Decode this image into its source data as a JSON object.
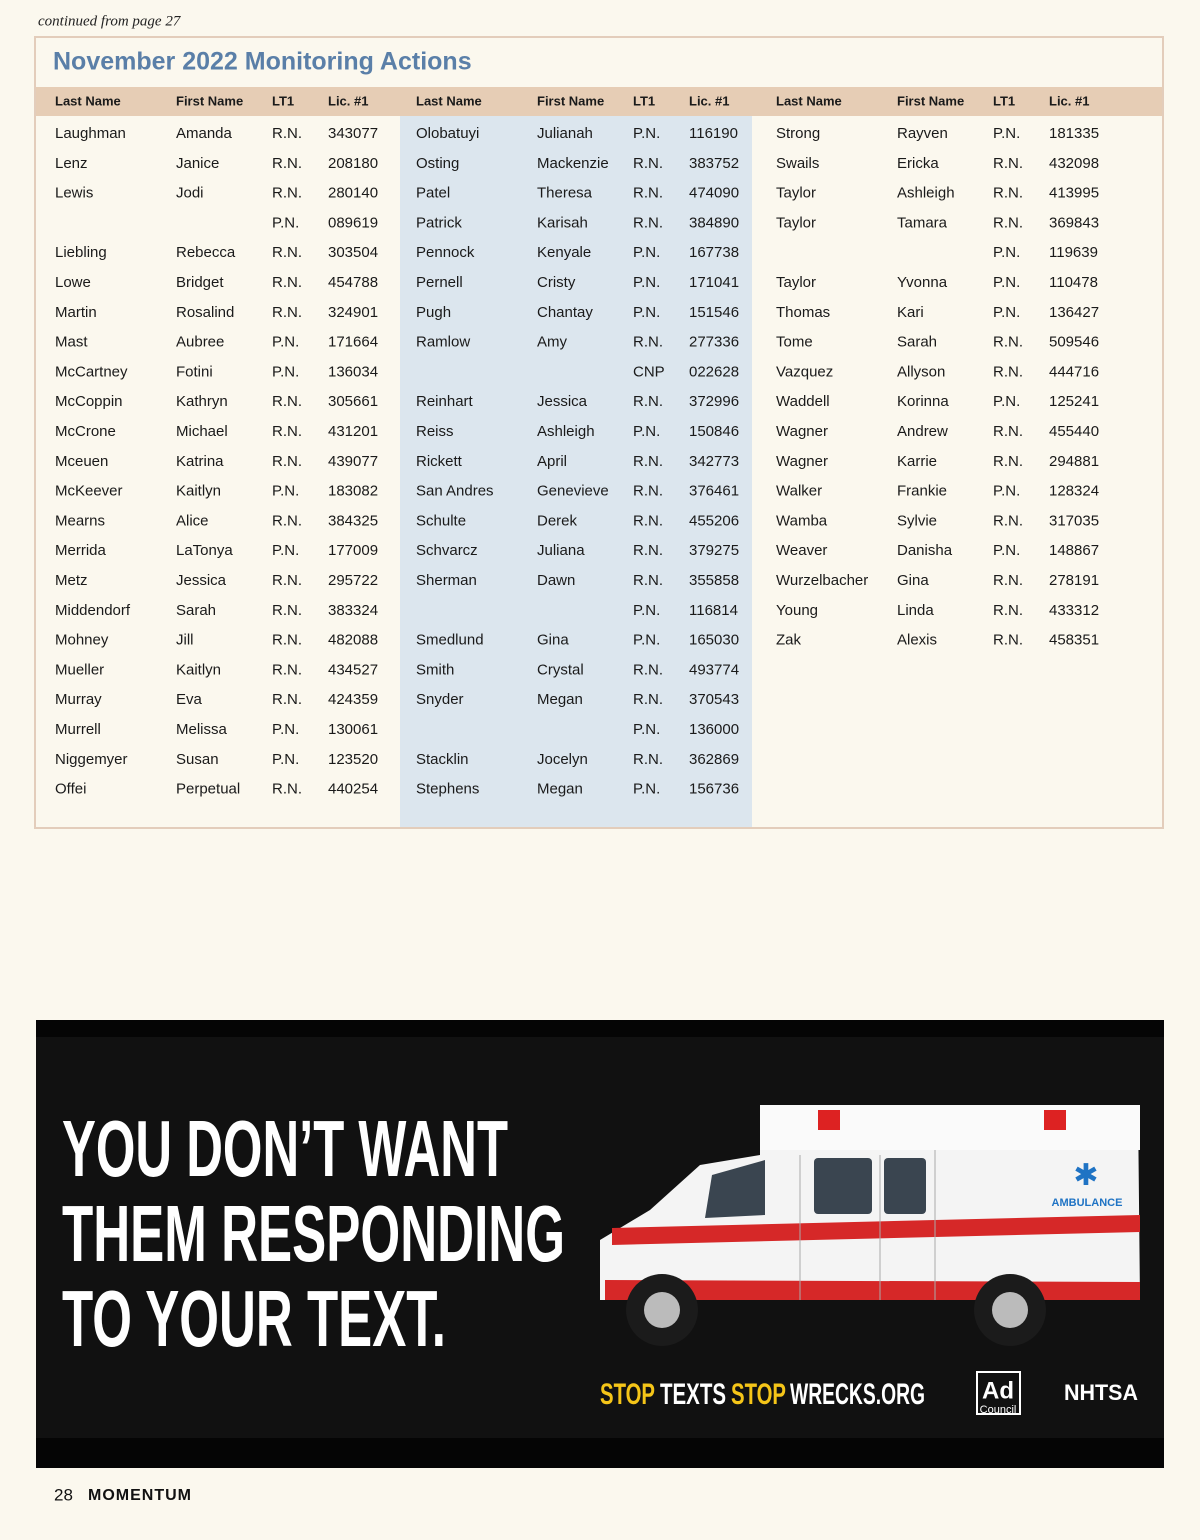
{
  "header": {
    "continued": "continued from page 27"
  },
  "table": {
    "title": "November 2022 Monitoring  Actions",
    "headers": [
      "Last Name",
      "First Name",
      "LT1",
      "Lic. #1"
    ],
    "columns": [
      {
        "rows": [
          [
            "Laughman",
            "Amanda",
            "R.N.",
            "343077"
          ],
          [
            "Lenz",
            "Janice",
            "R.N.",
            "208180"
          ],
          [
            "Lewis",
            "Jodi",
            "R.N.",
            "280140"
          ],
          [
            null,
            null,
            "P.N.",
            "089619"
          ],
          [
            "Liebling",
            "Rebecca",
            "R.N.",
            "303504"
          ],
          [
            "Lowe",
            "Bridget",
            "R.N.",
            "454788"
          ],
          [
            "Martin",
            "Rosalind",
            "R.N.",
            "324901"
          ],
          [
            "Mast",
            "Aubree",
            "P.N.",
            "171664"
          ],
          [
            "McCartney",
            "Fotini",
            "P.N.",
            "136034"
          ],
          [
            "McCoppin",
            "Kathryn",
            "R.N.",
            "305661"
          ],
          [
            "McCrone",
            "Michael",
            "R.N.",
            "431201"
          ],
          [
            "Mceuen",
            "Katrina",
            "R.N.",
            "439077"
          ],
          [
            "McKeever",
            "Kaitlyn",
            "P.N.",
            "183082"
          ],
          [
            "Mearns",
            "Alice",
            "R.N.",
            "384325"
          ],
          [
            "Merrida",
            "LaTonya",
            "P.N.",
            "177009"
          ],
          [
            "Metz",
            "Jessica",
            "R.N.",
            "295722"
          ],
          [
            "Middendorf",
            "Sarah",
            "R.N.",
            "383324"
          ],
          [
            "Mohney",
            "Jill",
            "R.N.",
            "482088"
          ],
          [
            "Mueller",
            "Kaitlyn",
            "R.N.",
            "434527"
          ],
          [
            "Murray",
            "Eva",
            "R.N.",
            "424359"
          ],
          [
            "Murrell",
            "Melissa",
            "P.N.",
            "130061"
          ],
          [
            "Niggemyer",
            "Susan",
            "P.N.",
            "123520"
          ],
          [
            "Offei",
            "Perpetual",
            "R.N.",
            "440254"
          ]
        ]
      },
      {
        "rows": [
          [
            "Olobatuyi",
            "Julianah",
            "P.N.",
            "116190"
          ],
          [
            "Osting",
            "Mackenzie",
            "R.N.",
            "383752"
          ],
          [
            "Patel",
            "Theresa",
            "R.N.",
            "474090"
          ],
          [
            "Patrick",
            "Karisah",
            "R.N.",
            "384890"
          ],
          [
            "Pennock",
            "Kenyale",
            "P.N.",
            "167738"
          ],
          [
            "Pernell",
            "Cristy",
            "P.N.",
            "171041"
          ],
          [
            "Pugh",
            "Chantay",
            "P.N.",
            "151546"
          ],
          [
            "Ramlow",
            "Amy",
            "R.N.",
            "277336"
          ],
          [
            null,
            null,
            "CNP",
            "022628"
          ],
          [
            "Reinhart",
            "Jessica",
            "R.N.",
            "372996"
          ],
          [
            "Reiss",
            "Ashleigh",
            "P.N.",
            "150846"
          ],
          [
            "Rickett",
            "April",
            "R.N.",
            "342773"
          ],
          [
            "San Andres",
            "Genevieve",
            "R.N.",
            "376461"
          ],
          [
            "Schulte",
            "Derek",
            "R.N.",
            "455206"
          ],
          [
            "Schvarcz",
            "Juliana",
            "R.N.",
            "379275"
          ],
          [
            "Sherman",
            "Dawn",
            "R.N.",
            "355858"
          ],
          [
            null,
            null,
            "P.N.",
            "116814"
          ],
          [
            "Smedlund",
            "Gina",
            "P.N.",
            "165030"
          ],
          [
            "Smith",
            "Crystal",
            "R.N.",
            "493774"
          ],
          [
            "Snyder",
            "Megan",
            "R.N.",
            "370543"
          ],
          [
            null,
            null,
            "P.N.",
            "136000"
          ],
          [
            "Stacklin",
            "Jocelyn",
            "R.N.",
            "362869"
          ],
          [
            "Stephens",
            "Megan",
            "P.N.",
            "156736"
          ]
        ]
      },
      {
        "rows": [
          [
            "Strong",
            "Rayven",
            "P.N.",
            "181335"
          ],
          [
            "Swails",
            "Ericka",
            "R.N.",
            "432098"
          ],
          [
            "Taylor",
            "Ashleigh",
            "R.N.",
            "413995"
          ],
          [
            "Taylor",
            "Tamara",
            "R.N.",
            "369843"
          ],
          [
            null,
            null,
            "P.N.",
            "119639"
          ],
          [
            "Taylor",
            "Yvonna",
            "P.N.",
            "110478"
          ],
          [
            "Thomas",
            "Kari",
            "P.N.",
            "136427"
          ],
          [
            "Tome",
            "Sarah",
            "R.N.",
            "509546"
          ],
          [
            "Vazquez",
            "Allyson",
            "R.N.",
            "444716"
          ],
          [
            "Waddell",
            "Korinna",
            "P.N.",
            "125241"
          ],
          [
            "Wagner",
            "Andrew",
            "R.N.",
            "455440"
          ],
          [
            "Wagner",
            "Karrie",
            "R.N.",
            "294881"
          ],
          [
            "Walker",
            "Frankie",
            "P.N.",
            "128324"
          ],
          [
            "Wamba",
            "Sylvie",
            "R.N.",
            "317035"
          ],
          [
            "Weaver",
            "Danisha",
            "P.N.",
            "148867"
          ],
          [
            "Wurzelbacher",
            "Gina",
            "R.N.",
            "278191"
          ],
          [
            "Young",
            "Linda",
            "R.N.",
            "433312"
          ],
          [
            "Zak",
            "Alexis",
            "R.N.",
            "458351"
          ]
        ]
      }
    ]
  },
  "ad": {
    "headline": [
      "YOU DON’T WANT",
      "THEM RESPONDING",
      "TO YOUR TEXT."
    ],
    "url": [
      "STOP",
      "TEXTS",
      "STOP",
      "WRECKS.ORG"
    ],
    "vehicle_label": "AMBULANCE",
    "logos": [
      "Ad",
      "Council",
      "NHTSA"
    ]
  },
  "footer": {
    "page": "28",
    "publication": "MOMENTUM"
  }
}
